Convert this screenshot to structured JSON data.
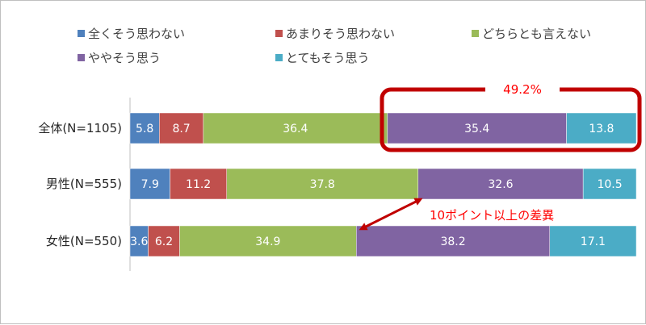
{
  "chart_data": {
    "type": "bar",
    "orientation": "horizontal",
    "stacked": true,
    "percent": true,
    "categories": [
      "全体(N=1105)",
      "男性(N=555)",
      "女性(N=550)"
    ],
    "series": [
      {
        "name": "全くそう思わない",
        "color": "#4f81bd",
        "values": [
          5.8,
          7.9,
          3.6
        ]
      },
      {
        "name": "あまりそう思わない",
        "color": "#c0504d",
        "values": [
          8.7,
          11.2,
          6.2
        ]
      },
      {
        "name": "どちらとも言えない",
        "color": "#9bbb59",
        "values": [
          36.4,
          37.8,
          34.9
        ]
      },
      {
        "name": "ややそう思う",
        "color": "#8064a2",
        "values": [
          35.4,
          32.6,
          38.2
        ]
      },
      {
        "name": "とてもそう思う",
        "color": "#4bacc6",
        "values": [
          13.8,
          10.5,
          17.1
        ]
      }
    ],
    "xlim": [
      0,
      100
    ],
    "legend_position": "top",
    "annotations": [
      {
        "text": "49.2%",
        "color": "#ff0000"
      },
      {
        "text": "10ポイント以上の差異",
        "color": "#ff0000"
      }
    ]
  }
}
